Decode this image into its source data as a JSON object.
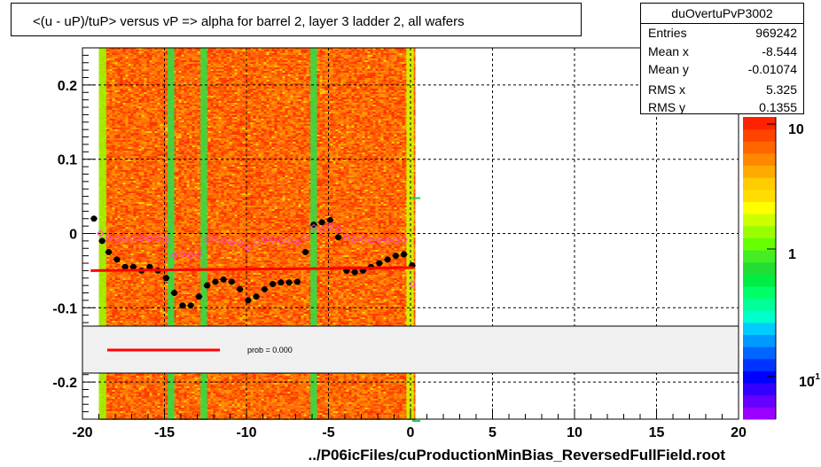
{
  "title": "<(u - uP)/tuP> versus   vP => alpha for barrel 2, layer 3 ladder 2, all wafers",
  "stats": {
    "name": "duOvertuPvP3002",
    "rows": [
      {
        "key": "Entries",
        "value": "969242"
      },
      {
        "key": "Mean x",
        "value": "-8.544"
      },
      {
        "key": "Mean y",
        "value": "-0.01074"
      },
      {
        "key": "RMS x",
        "value": "5.325"
      },
      {
        "key": "RMS y",
        "value": "0.1355"
      }
    ]
  },
  "footer_label": "../P06icFiles/cuProductionMinBias_ReversedFullField.root",
  "legend": {
    "fit_label": "prob = 0.000",
    "fit_color": "#ff0000"
  },
  "colorbar": {
    "tick_labels": [
      "10",
      "1",
      "10"
    ],
    "exponent_label": "-1",
    "colors": [
      "#9900ff",
      "#6600ff",
      "#3300ff",
      "#0000ff",
      "#0033ff",
      "#0066ff",
      "#0099ff",
      "#00ccff",
      "#00ffcc",
      "#00ff99",
      "#00ff66",
      "#00ee44",
      "#22dd33",
      "#44ee22",
      "#66ff00",
      "#99ff00",
      "#ccff00",
      "#ffff00",
      "#ffdd00",
      "#ffcc00",
      "#ffaa00",
      "#ff8800",
      "#ff6600",
      "#ff4400",
      "#ff2200"
    ]
  },
  "chart_data": {
    "type": "heatmap",
    "title": "<(u - uP)/tuP> versus   vP => alpha for barrel 2, layer 3 ladder 2, all wafers",
    "xlabel": "../P06icFiles/cuProductionMinBias_ReversedFullField.root",
    "ylabel": "",
    "xlim": [
      -20,
      20
    ],
    "ylim": [
      -0.25,
      0.25
    ],
    "x_ticks": [
      -20,
      -15,
      -10,
      -5,
      0,
      5,
      10,
      15,
      20
    ],
    "y_ticks": [
      -0.2,
      -0.1,
      0,
      0.1,
      0.2
    ],
    "y_tick_labels": [
      "-0.2",
      "-0.1",
      "0",
      "0.1",
      "0.2"
    ],
    "heatmap_x_range": [
      -19.0,
      0.2
    ],
    "heatmap_green_columns": [
      -14.6,
      -12.6,
      -5.9
    ],
    "grid": true,
    "series": [
      {
        "kind": "profile",
        "marker": "filled-circle",
        "color": "#000000",
        "x": [
          -19.3,
          -18.8,
          -18.4,
          -17.9,
          -17.4,
          -16.9,
          -16.4,
          -15.9,
          -15.4,
          -14.9,
          -14.4,
          -13.9,
          -13.4,
          -12.9,
          -12.4,
          -11.9,
          -11.4,
          -10.9,
          -10.4,
          -9.9,
          -9.4,
          -8.9,
          -8.4,
          -7.9,
          -7.4,
          -6.9,
          -6.4,
          -5.9,
          -5.4,
          -4.9,
          -4.4,
          -3.9,
          -3.4,
          -2.9,
          -2.4,
          -1.9,
          -1.4,
          -0.9,
          -0.4,
          0.1
        ],
        "y": [
          0.02,
          -0.01,
          -0.025,
          -0.035,
          -0.045,
          -0.045,
          -0.05,
          -0.045,
          -0.05,
          -0.06,
          -0.08,
          -0.097,
          -0.097,
          -0.085,
          -0.07,
          -0.065,
          -0.062,
          -0.065,
          -0.075,
          -0.09,
          -0.085,
          -0.075,
          -0.068,
          -0.066,
          -0.066,
          -0.065,
          -0.025,
          0.012,
          0.015,
          0.018,
          -0.005,
          -0.05,
          -0.052,
          -0.05,
          -0.045,
          -0.04,
          -0.035,
          -0.03,
          -0.028,
          -0.043
        ]
      },
      {
        "kind": "profile",
        "marker": "open-diamond",
        "color": "#ff44cc",
        "x": [
          -18.9,
          -18.4,
          -17.9,
          -17.4,
          -16.9,
          -16.4,
          -15.9,
          -15.4,
          -14.9,
          -14.4,
          -13.9,
          -13.4,
          -12.9,
          -12.4,
          -11.9,
          -11.4,
          -10.9,
          -10.4,
          -9.9,
          -9.4,
          -8.9,
          -8.4,
          -7.9,
          -7.4,
          -6.9,
          -6.4,
          -5.9,
          -5.4,
          -4.9,
          -4.4,
          -3.9,
          -3.4,
          -2.9,
          -2.4,
          -1.9,
          -1.4,
          -0.9,
          -0.4,
          0.1
        ],
        "y": [
          0.0,
          -0.005,
          -0.007,
          -0.008,
          -0.008,
          -0.006,
          -0.007,
          -0.006,
          -0.008,
          -0.03,
          -0.028,
          -0.03,
          -0.028,
          -0.008,
          -0.008,
          -0.01,
          -0.012,
          -0.013,
          -0.02,
          -0.012,
          -0.008,
          -0.008,
          -0.01,
          -0.01,
          -0.012,
          -0.005,
          0.008,
          0.005,
          0.01,
          0.005,
          -0.005,
          -0.008,
          -0.008,
          -0.009,
          -0.009,
          -0.01,
          -0.009,
          -0.008,
          -0.068
        ]
      },
      {
        "kind": "fit",
        "color": "#ff0000",
        "x": [
          -19.5,
          0.2
        ],
        "y": [
          -0.05,
          -0.046
        ]
      }
    ]
  }
}
